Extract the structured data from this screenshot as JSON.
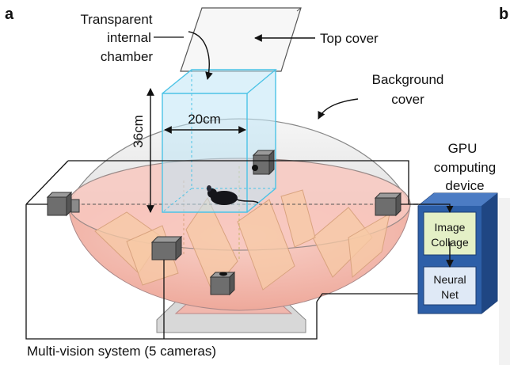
{
  "panel_a": "a",
  "panel_b": "b",
  "labels": {
    "transparent_chamber_l1": "Transparent",
    "transparent_chamber_l2": "internal",
    "transparent_chamber_l3": "chamber",
    "top_cover": "Top cover",
    "background_cover_l1": "Background",
    "background_cover_l2": "cover",
    "height_dim": "36cm",
    "width_dim": "20cm",
    "gpu_l1": "GPU",
    "gpu_l2": "computing",
    "gpu_l3": "device",
    "image_collage_l1": "Image",
    "image_collage_l2": "Collage",
    "neural_net_l1": "Neural",
    "neural_net_l2": "Net",
    "multi_vision": "Multi-vision system (5 cameras)"
  },
  "colors": {
    "dome_top": "#e9e9e9",
    "floor_pink": "#f6c6bd",
    "chamber_cyan": "#bfe6f5",
    "chamber_edge": "#4cc3e6",
    "gpu_blue": "#2d5fa8",
    "collage_box": "#e4f0c6",
    "neural_box": "#dfe9f6",
    "camera_gray": "#6e6e6e"
  },
  "icons": [
    "camera-icon",
    "mouse-icon",
    "gpu-device-icon"
  ]
}
